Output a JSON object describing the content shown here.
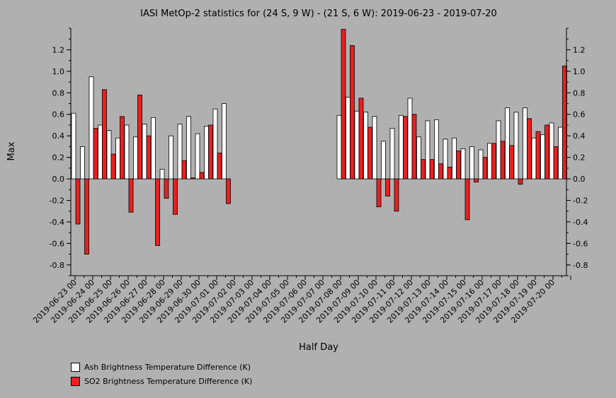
{
  "chart_data": {
    "type": "bar",
    "title": "IASI MetOp-2 statistics for (24 S, 9 W) - (21 S, 6 W): 2019-06-23 - 2019-07-20",
    "xlabel": "Half Day",
    "ylabel": "Max",
    "ylim": [
      -0.9,
      1.4
    ],
    "y_ticks": [
      "-0.8",
      "-0.6",
      "-0.4",
      "-0.2",
      "0.0",
      "0.2",
      "0.4",
      "0.6",
      "0.8",
      "1.0",
      "1.2"
    ],
    "y_tick_values": [
      -0.8,
      -0.6,
      -0.4,
      -0.2,
      0.0,
      0.2,
      0.4,
      0.6,
      0.8,
      1.0,
      1.2
    ],
    "grid": false,
    "legend_position": "bottom-left",
    "x_tick_labels": [
      "2019-06-23 00",
      "2019-06-24 00",
      "2019-06-25 00",
      "2019-06-26 00",
      "2019-06-27 00",
      "2019-06-28 00",
      "2019-06-29 00",
      "2019-06-30 00",
      "2019-07-01 00",
      "2019-07-02 00",
      "2019-07-03 00",
      "2019-07-04 00",
      "2019-07-05 00",
      "2019-07-06 00",
      "2019-07-07 00",
      "2019-07-08 00",
      "2019-07-09 00",
      "2019-07-10 00",
      "2019-07-11 00",
      "2019-07-12 00",
      "2019-07-13 00",
      "2019-07-14 00",
      "2019-07-15 00",
      "2019-07-16 00",
      "2019-07-17 00",
      "2019-07-18 00",
      "2019-07-19 00",
      "2019-07-20 00"
    ],
    "series": [
      {
        "name": "Ash Brightness Temperature Difference (K)",
        "color": "#ffffff",
        "values": [
          0.61,
          0.3,
          0.95,
          0.5,
          0.45,
          0.38,
          0.5,
          0.39,
          0.51,
          0.57,
          0.09,
          0.4,
          0.51,
          0.58,
          0.42,
          0.49,
          0.65,
          0.7,
          null,
          null,
          null,
          null,
          null,
          null,
          null,
          null,
          null,
          null,
          null,
          null,
          0.59,
          0.76,
          0.63,
          0.62,
          0.58,
          0.35,
          0.47,
          0.59,
          0.75,
          0.39,
          0.54,
          0.55,
          0.37,
          0.38,
          0.28,
          0.3,
          0.27,
          0.33,
          0.54,
          0.66,
          0.62,
          0.66,
          0.38,
          0.41,
          0.52,
          0.48
        ]
      },
      {
        "name": "SO2 Brightness Temperature Difference (K)",
        "color": "#e82020",
        "values": [
          -0.42,
          -0.7,
          0.47,
          0.83,
          0.23,
          0.58,
          -0.31,
          0.78,
          0.4,
          -0.62,
          -0.18,
          -0.33,
          0.17,
          0.01,
          0.06,
          0.5,
          0.24,
          -0.23,
          null,
          null,
          null,
          null,
          null,
          null,
          null,
          null,
          null,
          null,
          null,
          null,
          1.39,
          1.24,
          0.75,
          0.48,
          -0.26,
          -0.16,
          -0.3,
          0.58,
          0.6,
          0.18,
          0.18,
          0.14,
          0.11,
          0.26,
          -0.38,
          -0.03,
          0.2,
          0.33,
          0.35,
          0.31,
          -0.05,
          0.56,
          0.44,
          0.5,
          0.3,
          1.05
        ]
      }
    ]
  }
}
